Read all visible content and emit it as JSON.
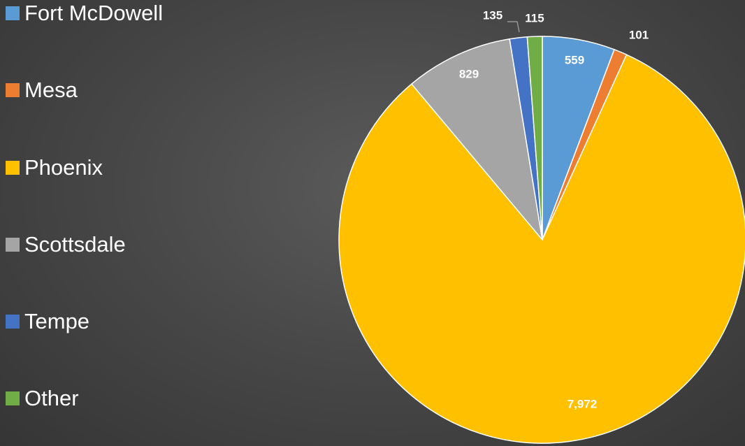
{
  "chart_data": {
    "type": "pie",
    "title": "",
    "legend_position": "left",
    "start_angle_deg": 0,
    "direction": "clockwise",
    "slices": [
      {
        "label": "Fort McDowell",
        "value": 559,
        "value_label": "559",
        "color": "#5b9bd5"
      },
      {
        "label": "Mesa",
        "value": 101,
        "value_label": "101",
        "color": "#ed7d31"
      },
      {
        "label": "Phoenix",
        "value": 7972,
        "value_label": "7,972",
        "color": "#ffc000"
      },
      {
        "label": "Scottsdale",
        "value": 829,
        "value_label": "829",
        "color": "#a5a5a5"
      },
      {
        "label": "Tempe",
        "value": 135,
        "value_label": "135",
        "color": "#4472c4"
      },
      {
        "label": "Other",
        "value": 115,
        "value_label": "115",
        "color": "#70ad47"
      }
    ]
  }
}
